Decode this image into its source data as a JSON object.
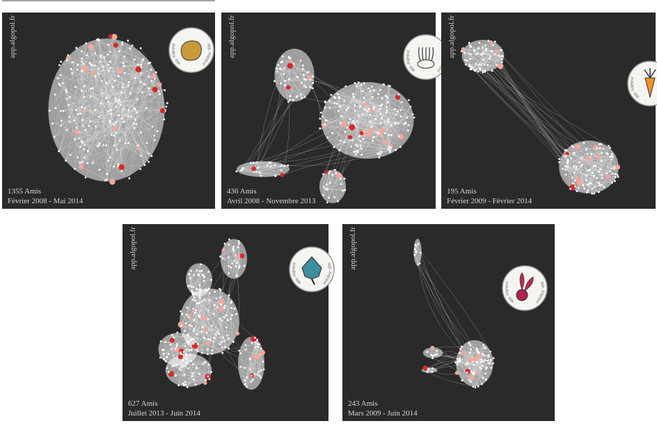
{
  "panels": [
    {
      "watermark": "app.algopol.fr",
      "badge": "app. Algopol",
      "count": "1355 Amis",
      "period": "Février 2008 - Mai 2014"
    },
    {
      "watermark": "app.algopol.fr",
      "badge": "app. Algopol",
      "count": "436 Amis",
      "period": "Avril 2008 - Novembre 2013"
    },
    {
      "watermark": "app.algopol.fr",
      "badge": "app. Algopol",
      "count": "195 Amis",
      "period": "Février 2009 - Février 2014"
    },
    {
      "watermark": "app.algopol.fr",
      "badge": "app. Algopol",
      "count": "627 Amis",
      "period": "Juillet 2013 - Juin 2014"
    },
    {
      "watermark": "app.algopol.fr",
      "badge": "app. Algopol",
      "count": "243 Amis",
      "period": "Mars 2009 - Juin 2014"
    }
  ]
}
